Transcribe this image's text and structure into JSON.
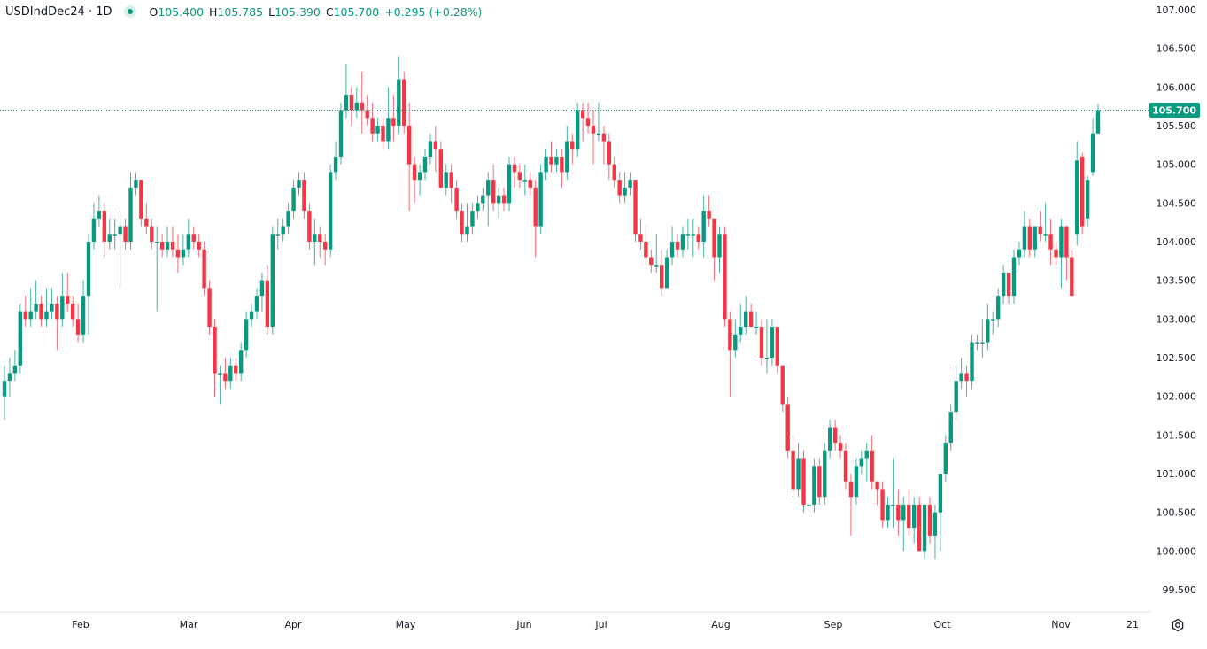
{
  "header": {
    "symbol": "USDIndDec24 · 1D",
    "open_label": "O",
    "open": "105.400",
    "high_label": "H",
    "high": "105.785",
    "low_label": "L",
    "low": "105.390",
    "close_label": "C",
    "close": "105.700",
    "change": "+0.295 (+0.28%)"
  },
  "colors": {
    "up": "#089981",
    "down": "#F23645",
    "last_price": "#089981"
  },
  "chart_data": {
    "type": "candlestick",
    "title": "",
    "ylim": [
      99.5,
      107.0
    ],
    "y_ticks": [
      "107.000",
      "106.500",
      "106.000",
      "105.500",
      "105.000",
      "104.500",
      "104.000",
      "103.500",
      "103.000",
      "102.500",
      "102.000",
      "101.500",
      "101.000",
      "100.500",
      "100.000",
      "99.500"
    ],
    "x_ticks": [
      "Feb",
      "Mar",
      "Apr",
      "May",
      "Jun",
      "Jul",
      "Aug",
      "Sep",
      "Oct",
      "Nov",
      "21"
    ],
    "last_price": "105.700",
    "grid": false,
    "candles_ohlc": [
      [
        102.0,
        102.4,
        101.7,
        102.2
      ],
      [
        102.2,
        102.5,
        102.0,
        102.3
      ],
      [
        102.3,
        102.6,
        102.2,
        102.4
      ],
      [
        102.4,
        103.2,
        102.3,
        103.1
      ],
      [
        103.1,
        103.3,
        102.9,
        103.0
      ],
      [
        103.0,
        103.4,
        102.9,
        103.1
      ],
      [
        103.1,
        103.5,
        103.0,
        103.2
      ],
      [
        103.2,
        103.3,
        102.9,
        103.0
      ],
      [
        103.0,
        103.4,
        102.9,
        103.1
      ],
      [
        103.1,
        103.4,
        103.0,
        103.2
      ],
      [
        103.2,
        103.3,
        102.6,
        103.0
      ],
      [
        103.0,
        103.6,
        102.9,
        103.3
      ],
      [
        103.3,
        103.6,
        103.1,
        103.2
      ],
      [
        103.2,
        103.3,
        102.9,
        103.0
      ],
      [
        103.0,
        103.2,
        102.7,
        102.8
      ],
      [
        102.8,
        103.5,
        102.7,
        103.3
      ],
      [
        103.3,
        104.1,
        102.8,
        104.0
      ],
      [
        104.0,
        104.5,
        103.9,
        104.3
      ],
      [
        104.3,
        104.6,
        104.2,
        104.4
      ],
      [
        104.4,
        104.5,
        103.8,
        104.0
      ],
      [
        104.0,
        104.3,
        103.9,
        104.1
      ],
      [
        104.1,
        104.3,
        103.9,
        104.1
      ],
      [
        104.1,
        104.4,
        103.4,
        104.2
      ],
      [
        104.2,
        104.3,
        103.9,
        104.0
      ],
      [
        104.0,
        104.9,
        103.9,
        104.7
      ],
      [
        104.7,
        104.9,
        104.6,
        104.8
      ],
      [
        104.8,
        104.8,
        104.2,
        104.3
      ],
      [
        104.3,
        104.5,
        104.1,
        104.2
      ],
      [
        104.2,
        104.3,
        103.9,
        104.0
      ],
      [
        104.0,
        104.2,
        103.1,
        104.0
      ],
      [
        104.0,
        104.1,
        103.8,
        103.9
      ],
      [
        103.9,
        104.2,
        103.8,
        104.0
      ],
      [
        104.0,
        104.2,
        103.8,
        103.9
      ],
      [
        103.9,
        104.1,
        103.6,
        103.8
      ],
      [
        103.8,
        104.1,
        103.7,
        103.9
      ],
      [
        103.9,
        104.3,
        103.8,
        104.1
      ],
      [
        104.1,
        104.2,
        103.9,
        104.0
      ],
      [
        104.0,
        104.1,
        103.8,
        103.9
      ],
      [
        103.9,
        104.0,
        103.3,
        103.4
      ],
      [
        103.4,
        103.5,
        102.8,
        102.9
      ],
      [
        102.9,
        103.0,
        102.0,
        102.3
      ],
      [
        102.3,
        102.4,
        101.9,
        102.3
      ],
      [
        102.3,
        102.5,
        102.1,
        102.2
      ],
      [
        102.2,
        102.5,
        102.1,
        102.4
      ],
      [
        102.4,
        102.5,
        102.2,
        102.3
      ],
      [
        102.3,
        102.7,
        102.2,
        102.6
      ],
      [
        102.6,
        103.1,
        102.5,
        103.0
      ],
      [
        103.0,
        103.2,
        102.9,
        103.1
      ],
      [
        103.1,
        103.4,
        103.0,
        103.3
      ],
      [
        103.3,
        103.6,
        103.1,
        103.5
      ],
      [
        103.5,
        103.7,
        102.8,
        102.9
      ],
      [
        102.9,
        104.2,
        102.8,
        104.1
      ],
      [
        104.1,
        104.3,
        103.9,
        104.1
      ],
      [
        104.1,
        104.3,
        104.0,
        104.2
      ],
      [
        104.2,
        104.5,
        104.1,
        104.4
      ],
      [
        104.4,
        104.8,
        104.3,
        104.7
      ],
      [
        104.7,
        104.9,
        104.6,
        104.8
      ],
      [
        104.8,
        104.9,
        104.3,
        104.4
      ],
      [
        104.4,
        104.5,
        103.9,
        104.0
      ],
      [
        104.0,
        104.3,
        103.7,
        104.1
      ],
      [
        104.1,
        104.2,
        103.8,
        104.0
      ],
      [
        104.0,
        104.1,
        103.7,
        103.9
      ],
      [
        103.9,
        105.0,
        103.8,
        104.9
      ],
      [
        104.9,
        105.3,
        104.8,
        105.1
      ],
      [
        105.1,
        105.8,
        105.0,
        105.7
      ],
      [
        105.7,
        106.3,
        105.6,
        105.9
      ],
      [
        105.9,
        106.0,
        105.5,
        105.7
      ],
      [
        105.7,
        106.0,
        105.6,
        105.8
      ],
      [
        105.8,
        106.2,
        105.4,
        105.7
      ],
      [
        105.7,
        105.9,
        105.5,
        105.6
      ],
      [
        105.6,
        105.8,
        105.3,
        105.4
      ],
      [
        105.4,
        105.6,
        105.3,
        105.5
      ],
      [
        105.5,
        105.6,
        105.2,
        105.3
      ],
      [
        105.3,
        106.0,
        105.2,
        105.6
      ],
      [
        105.6,
        105.9,
        105.3,
        105.5
      ],
      [
        105.5,
        106.4,
        105.4,
        106.1
      ],
      [
        106.1,
        106.2,
        105.4,
        105.5
      ],
      [
        105.5,
        105.8,
        104.4,
        105.0
      ],
      [
        105.0,
        105.1,
        104.5,
        104.8
      ],
      [
        104.8,
        105.0,
        104.6,
        104.9
      ],
      [
        104.9,
        105.2,
        104.8,
        105.1
      ],
      [
        105.1,
        105.4,
        105.0,
        105.3
      ],
      [
        105.3,
        105.5,
        104.9,
        105.2
      ],
      [
        105.2,
        105.3,
        104.7,
        104.7
      ],
      [
        104.7,
        105.0,
        104.6,
        104.9
      ],
      [
        104.9,
        105.0,
        104.5,
        104.7
      ],
      [
        104.7,
        104.8,
        104.3,
        104.4
      ],
      [
        104.4,
        104.5,
        104.0,
        104.1
      ],
      [
        104.1,
        104.5,
        104.0,
        104.2
      ],
      [
        104.2,
        104.5,
        104.1,
        104.4
      ],
      [
        104.4,
        104.6,
        104.3,
        104.5
      ],
      [
        104.5,
        104.7,
        104.4,
        104.6
      ],
      [
        104.6,
        104.9,
        104.2,
        104.8
      ],
      [
        104.8,
        105.0,
        104.4,
        104.5
      ],
      [
        104.5,
        104.7,
        104.3,
        104.6
      ],
      [
        104.6,
        104.7,
        104.4,
        104.5
      ],
      [
        104.5,
        105.1,
        104.4,
        105.0
      ],
      [
        105.0,
        105.1,
        104.7,
        104.9
      ],
      [
        104.9,
        105.0,
        104.7,
        104.8
      ],
      [
        104.8,
        105.0,
        104.6,
        104.8
      ],
      [
        104.8,
        104.9,
        104.6,
        104.7
      ],
      [
        104.7,
        104.8,
        103.8,
        104.2
      ],
      [
        104.2,
        105.0,
        104.1,
        104.9
      ],
      [
        104.9,
        105.2,
        104.8,
        105.1
      ],
      [
        105.1,
        105.3,
        104.9,
        105.0
      ],
      [
        105.0,
        105.2,
        104.9,
        105.1
      ],
      [
        105.1,
        105.2,
        104.7,
        104.9
      ],
      [
        104.9,
        105.5,
        104.8,
        105.3
      ],
      [
        105.3,
        105.4,
        105.0,
        105.2
      ],
      [
        105.2,
        105.8,
        105.1,
        105.7
      ],
      [
        105.7,
        105.8,
        105.3,
        105.6
      ],
      [
        105.6,
        105.8,
        105.4,
        105.5
      ],
      [
        105.5,
        105.7,
        105.0,
        105.4
      ],
      [
        105.4,
        105.8,
        105.3,
        105.4
      ],
      [
        105.4,
        105.5,
        105.0,
        105.3
      ],
      [
        105.3,
        105.4,
        104.8,
        105.0
      ],
      [
        105.0,
        105.1,
        104.7,
        104.8
      ],
      [
        104.8,
        104.9,
        104.5,
        104.6
      ],
      [
        104.6,
        104.9,
        104.5,
        104.7
      ],
      [
        104.7,
        104.9,
        104.6,
        104.8
      ],
      [
        104.8,
        104.8,
        104.0,
        104.1
      ],
      [
        104.1,
        104.3,
        103.9,
        104.0
      ],
      [
        104.0,
        104.2,
        103.7,
        103.8
      ],
      [
        103.8,
        103.9,
        103.6,
        103.7
      ],
      [
        103.7,
        104.1,
        103.6,
        103.7
      ],
      [
        103.7,
        103.9,
        103.3,
        103.4
      ],
      [
        103.4,
        103.9,
        103.4,
        103.8
      ],
      [
        103.8,
        104.2,
        103.7,
        104.0
      ],
      [
        104.0,
        104.1,
        103.8,
        103.9
      ],
      [
        103.9,
        104.2,
        103.8,
        104.1
      ],
      [
        104.1,
        104.3,
        103.9,
        104.1
      ],
      [
        104.1,
        104.3,
        103.8,
        104.1
      ],
      [
        104.1,
        104.2,
        103.9,
        104.0
      ],
      [
        104.0,
        104.6,
        103.8,
        104.4
      ],
      [
        104.4,
        104.6,
        104.2,
        104.3
      ],
      [
        104.3,
        104.3,
        103.5,
        103.8
      ],
      [
        103.8,
        104.2,
        103.6,
        104.1
      ],
      [
        104.1,
        104.2,
        102.9,
        103.0
      ],
      [
        103.0,
        103.1,
        102.0,
        102.6
      ],
      [
        102.6,
        103.0,
        102.5,
        102.8
      ],
      [
        102.8,
        103.2,
        102.7,
        102.9
      ],
      [
        102.9,
        103.3,
        102.8,
        103.1
      ],
      [
        103.1,
        103.2,
        102.9,
        102.9
      ],
      [
        102.9,
        103.1,
        102.8,
        102.9
      ],
      [
        102.9,
        103.0,
        102.4,
        102.5
      ],
      [
        102.5,
        103.0,
        102.3,
        102.5
      ],
      [
        102.5,
        103.0,
        102.4,
        102.9
      ],
      [
        102.9,
        102.9,
        102.3,
        102.4
      ],
      [
        102.4,
        102.4,
        101.8,
        101.9
      ],
      [
        101.9,
        102.0,
        101.2,
        101.3
      ],
      [
        101.3,
        101.5,
        100.7,
        100.8
      ],
      [
        100.8,
        101.4,
        100.7,
        101.2
      ],
      [
        101.2,
        101.3,
        100.5,
        100.6
      ],
      [
        100.6,
        100.9,
        100.5,
        100.6
      ],
      [
        100.6,
        101.2,
        100.5,
        101.1
      ],
      [
        101.1,
        101.2,
        100.6,
        100.7
      ],
      [
        100.7,
        101.4,
        100.6,
        101.3
      ],
      [
        101.3,
        101.7,
        101.2,
        101.6
      ],
      [
        101.6,
        101.7,
        101.3,
        101.4
      ],
      [
        101.4,
        101.5,
        101.2,
        101.3
      ],
      [
        101.3,
        101.4,
        100.8,
        100.9
      ],
      [
        100.9,
        101.0,
        100.2,
        100.7
      ],
      [
        100.7,
        101.2,
        100.6,
        101.1
      ],
      [
        101.1,
        101.3,
        101.0,
        101.2
      ],
      [
        101.2,
        101.4,
        100.9,
        101.3
      ],
      [
        101.3,
        101.5,
        100.8,
        100.9
      ],
      [
        100.9,
        100.9,
        100.6,
        100.8
      ],
      [
        100.8,
        100.9,
        100.3,
        100.4
      ],
      [
        100.4,
        100.7,
        100.3,
        100.6
      ],
      [
        100.6,
        101.2,
        100.3,
        100.6
      ],
      [
        100.6,
        100.8,
        100.2,
        100.4
      ],
      [
        100.4,
        100.7,
        100.0,
        100.6
      ],
      [
        100.6,
        100.8,
        100.2,
        100.3
      ],
      [
        100.3,
        100.7,
        100.1,
        100.6
      ],
      [
        100.6,
        100.7,
        100.0,
        100.0
      ],
      [
        100.0,
        100.6,
        99.9,
        100.6
      ],
      [
        100.6,
        100.7,
        100.1,
        100.2
      ],
      [
        100.2,
        100.6,
        99.9,
        100.5
      ],
      [
        100.5,
        101.0,
        100.0,
        101.0
      ],
      [
        101.0,
        101.5,
        100.9,
        101.4
      ],
      [
        101.4,
        101.9,
        101.3,
        101.8
      ],
      [
        101.8,
        102.4,
        101.7,
        102.2
      ],
      [
        102.2,
        102.5,
        102.1,
        102.3
      ],
      [
        102.3,
        102.4,
        102.0,
        102.2
      ],
      [
        102.2,
        102.8,
        102.1,
        102.7
      ],
      [
        102.7,
        102.8,
        102.6,
        102.7
      ],
      [
        102.7,
        103.0,
        102.5,
        102.7
      ],
      [
        102.7,
        103.2,
        102.6,
        103.0
      ],
      [
        103.0,
        103.1,
        102.8,
        103.0
      ],
      [
        103.0,
        103.4,
        102.9,
        103.3
      ],
      [
        103.3,
        103.7,
        103.2,
        103.6
      ],
      [
        103.6,
        103.6,
        103.2,
        103.3
      ],
      [
        103.3,
        103.9,
        103.2,
        103.8
      ],
      [
        103.8,
        104.0,
        103.7,
        103.9
      ],
      [
        103.9,
        104.4,
        103.8,
        104.2
      ],
      [
        104.2,
        104.3,
        103.8,
        103.9
      ],
      [
        103.9,
        104.2,
        103.8,
        104.2
      ],
      [
        104.2,
        104.4,
        104.0,
        104.1
      ],
      [
        104.1,
        104.5,
        104.0,
        104.1
      ],
      [
        104.1,
        104.3,
        103.7,
        103.9
      ],
      [
        103.9,
        104.0,
        103.7,
        103.8
      ],
      [
        103.8,
        104.3,
        103.4,
        104.2
      ],
      [
        104.2,
        104.2,
        103.5,
        103.8
      ],
      [
        103.8,
        103.9,
        103.3,
        103.3
      ],
      [
        104.1,
        105.3,
        103.95,
        105.05
      ],
      [
        105.1,
        105.15,
        104.1,
        104.2
      ],
      [
        104.3,
        104.85,
        104.2,
        104.8
      ],
      [
        104.9,
        105.6,
        104.85,
        105.4
      ],
      [
        105.4,
        105.785,
        105.39,
        105.7
      ]
    ]
  }
}
